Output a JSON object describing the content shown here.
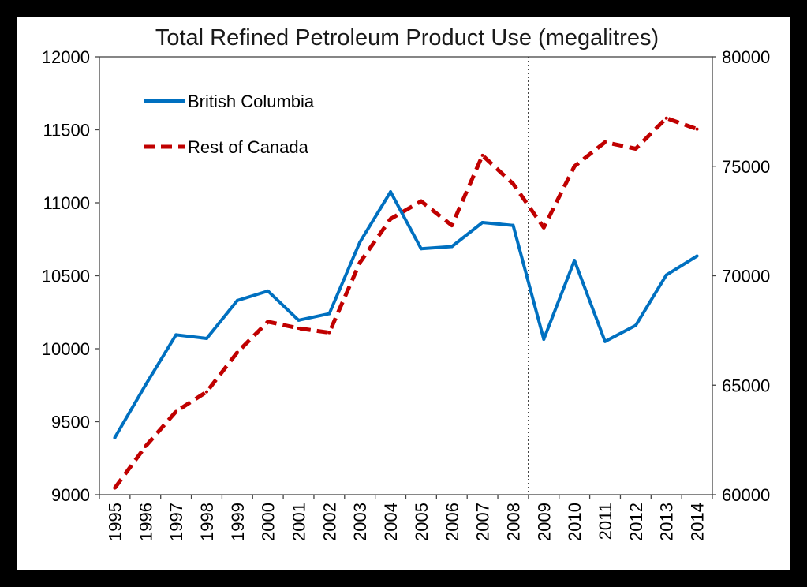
{
  "chart_data": {
    "type": "line",
    "title": "Total Refined Petroleum Product Use (megalitres)",
    "categories": [
      "1995",
      "1996",
      "1997",
      "1998",
      "1999",
      "2000",
      "2001",
      "2002",
      "2003",
      "2004",
      "2005",
      "2006",
      "2007",
      "2008",
      "2009",
      "2010",
      "2011",
      "2012",
      "2013",
      "2014"
    ],
    "series": [
      {
        "name": "British Columbia",
        "axis": "left",
        "color": "#0070C0",
        "style": "solid",
        "values": [
          9390,
          9750,
          10095,
          10070,
          10330,
          10395,
          10195,
          10240,
          10730,
          11075,
          10685,
          10700,
          10865,
          10845,
          10065,
          10605,
          10050,
          10160,
          10505,
          10635
        ]
      },
      {
        "name": "Rest of Canada",
        "axis": "right",
        "color": "#C00000",
        "style": "dashed",
        "values": [
          60300,
          62200,
          63800,
          64700,
          66500,
          67900,
          67600,
          67400,
          70600,
          72600,
          73400,
          72300,
          75500,
          74200,
          72200,
          75000,
          76100,
          75800,
          77200,
          76700
        ]
      }
    ],
    "y_left": {
      "min": 9000,
      "max": 12000,
      "ticks": [
        9000,
        9500,
        10000,
        10500,
        11000,
        11500,
        12000
      ]
    },
    "y_right": {
      "min": 60000,
      "max": 80000,
      "ticks": [
        60000,
        65000,
        70000,
        75000,
        80000
      ]
    },
    "reference_line": {
      "category": "2008",
      "style": "dotted"
    },
    "legend_position": "top-left",
    "grid": false
  }
}
